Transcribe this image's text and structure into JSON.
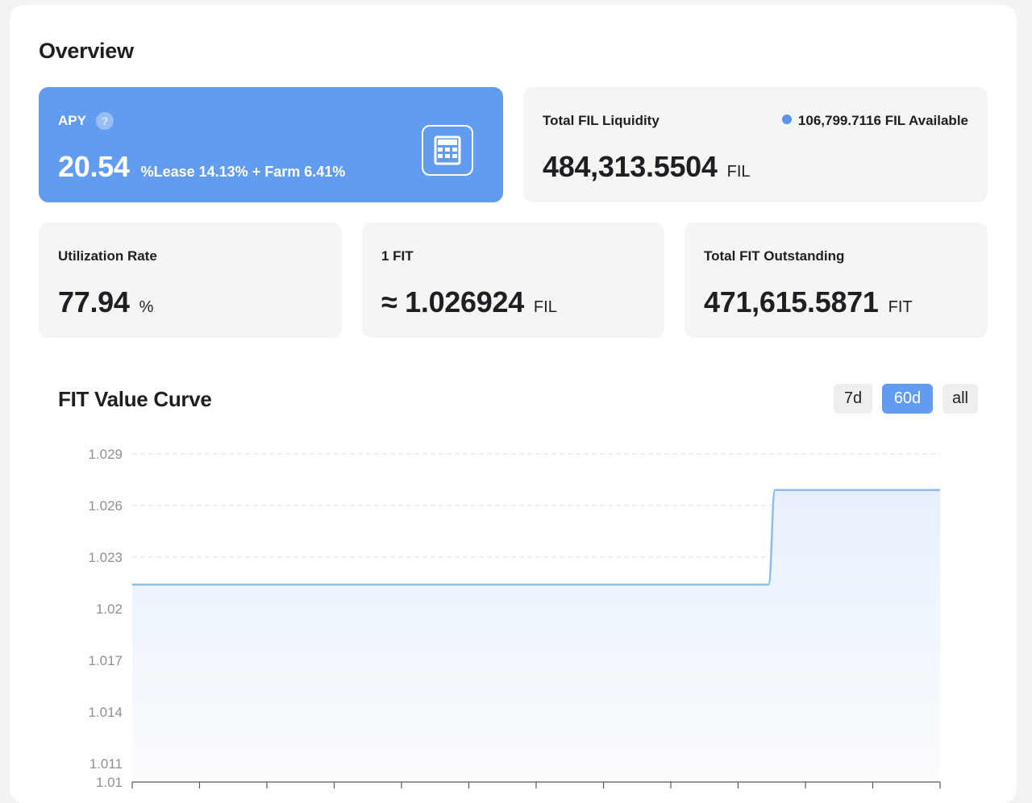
{
  "overview": {
    "title": "Overview"
  },
  "apy": {
    "label": "APY",
    "help": "?",
    "value": "20.54",
    "breakdown": "%Lease 14.13% + Farm 6.41%",
    "calculator_icon": "calculator-icon"
  },
  "liquidity": {
    "label": "Total FIL Liquidity",
    "value": "484,313.5504",
    "unit": "FIL",
    "available": "106,799.7116 FIL Available"
  },
  "utilization": {
    "label": "Utilization Rate",
    "value": "77.94",
    "unit": "%"
  },
  "fit_rate": {
    "label": "1 FIT",
    "value": "≈ 1.026924",
    "unit": "FIL"
  },
  "outstanding": {
    "label": "Total FIT Outstanding",
    "value": "471,615.5871",
    "unit": "FIT"
  },
  "chart_section": {
    "title": "FIT Value Curve",
    "ranges": [
      "7d",
      "60d",
      "all"
    ],
    "active_range": "60d"
  },
  "colors": {
    "accent": "#619cf1",
    "card_bg": "#f4f5f5",
    "line": "#8fbcf0",
    "dot": "#5b93ef"
  },
  "chart_data": {
    "type": "area",
    "title": "FIT Value Curve",
    "xlabel": "",
    "ylabel": "",
    "yticks": [
      "1.029",
      "1.026",
      "1.023",
      "1.02",
      "1.017",
      "1.014",
      "1.011",
      "1.01"
    ],
    "ylim": [
      1.01,
      1.029
    ],
    "grid": true,
    "series": [
      {
        "x": [
          0,
          1,
          2,
          3,
          4,
          5,
          6,
          7,
          8,
          9,
          9.45,
          9.55,
          10,
          11,
          12
        ],
        "values": [
          1.0214,
          1.0214,
          1.0214,
          1.0214,
          1.0214,
          1.0214,
          1.0214,
          1.0214,
          1.0214,
          1.0214,
          1.0214,
          1.0269,
          1.0269,
          1.0269,
          1.0269
        ]
      }
    ]
  }
}
